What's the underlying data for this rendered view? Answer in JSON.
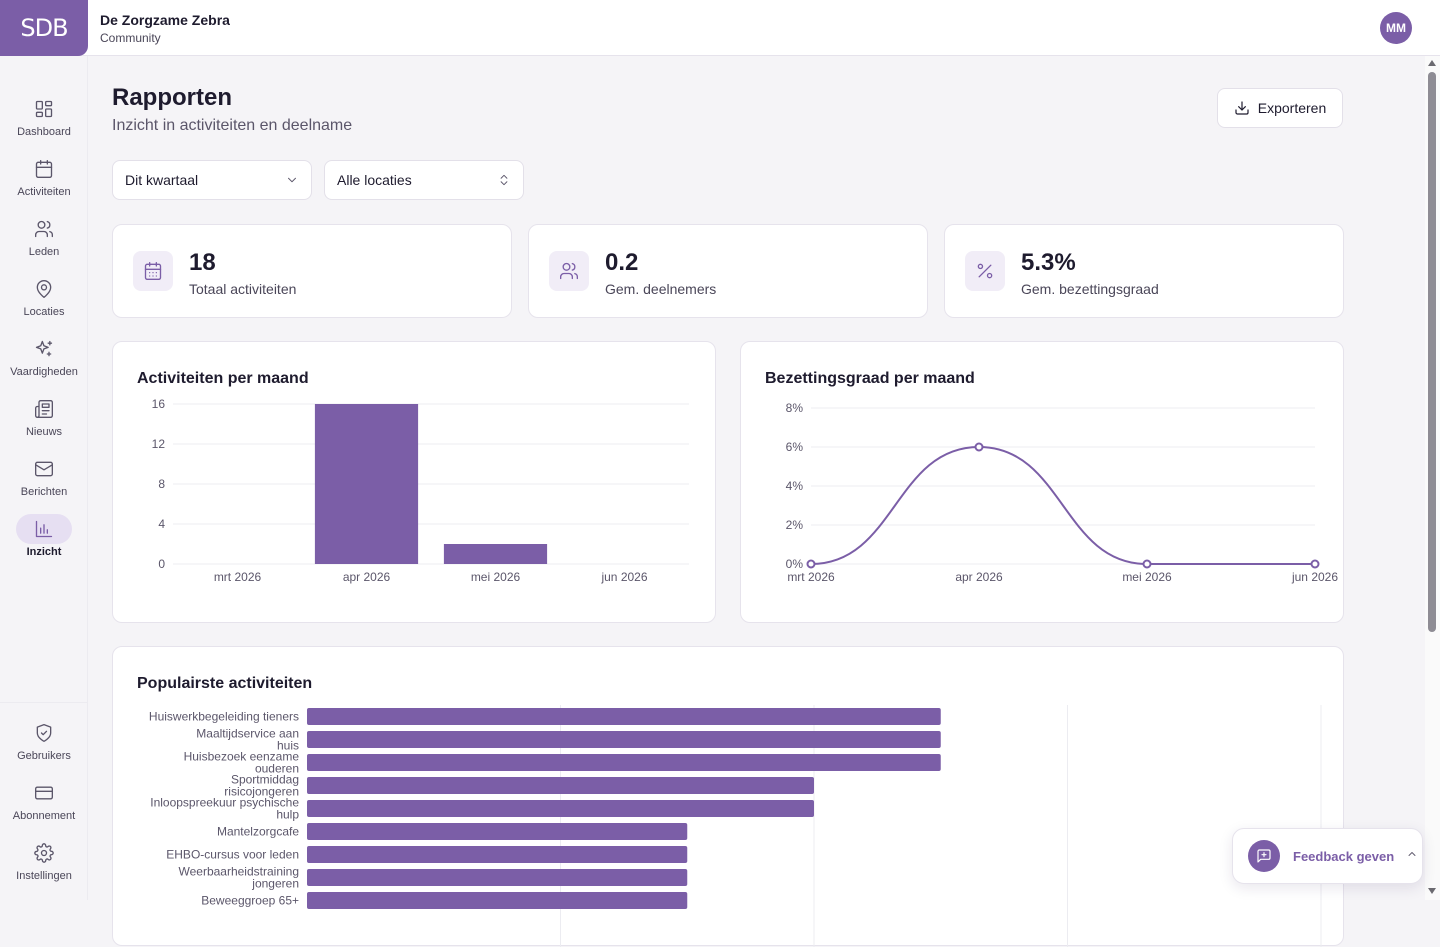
{
  "header": {
    "logo_text": "SDB",
    "org_name": "De Zorgzame Zebra",
    "org_sub": "Community",
    "avatar_initials": "MM"
  },
  "sidebar": {
    "items": [
      {
        "label": "Dashboard",
        "icon": "dashboard-icon"
      },
      {
        "label": "Activiteiten",
        "icon": "calendar-icon"
      },
      {
        "label": "Leden",
        "icon": "users-icon"
      },
      {
        "label": "Locaties",
        "icon": "map-pin-icon"
      },
      {
        "label": "Vaardigheden",
        "icon": "sparkles-icon"
      },
      {
        "label": "Nieuws",
        "icon": "newspaper-icon"
      },
      {
        "label": "Berichten",
        "icon": "mail-icon"
      },
      {
        "label": "Inzicht",
        "icon": "bar-chart-icon",
        "active": true
      }
    ],
    "bottom_items": [
      {
        "label": "Gebruikers",
        "icon": "shield-icon"
      },
      {
        "label": "Abonnement",
        "icon": "credit-card-icon"
      },
      {
        "label": "Instellingen",
        "icon": "gear-icon"
      }
    ]
  },
  "page": {
    "title": "Rapporten",
    "subtitle": "Inzicht in activiteiten en deelname",
    "export_label": "Exporteren"
  },
  "filters": {
    "period": "Dit kwartaal",
    "location": "Alle locaties"
  },
  "stats": [
    {
      "value": "18",
      "label": "Totaal activiteiten",
      "icon": "calendar-icon"
    },
    {
      "value": "0.2",
      "label": "Gem. deelnemers",
      "icon": "users-icon"
    },
    {
      "value": "5.3%",
      "label": "Gem. bezettingsgraad",
      "icon": "percent-icon"
    }
  ],
  "colors": {
    "accent": "#7b5ea7",
    "bar": "#7b5ea7"
  },
  "chart_data": [
    {
      "type": "bar",
      "title": "Activiteiten per maand",
      "categories": [
        "mrt 2026",
        "apr 2026",
        "mei 2026",
        "jun 2026"
      ],
      "values": [
        0,
        16,
        2,
        0
      ],
      "yticks": [
        "0",
        "4",
        "8",
        "12",
        "16"
      ],
      "ylim": [
        0,
        16
      ],
      "grid": true
    },
    {
      "type": "line",
      "title": "Bezettingsgraad per maand",
      "categories": [
        "mrt 2026",
        "apr 2026",
        "mei 2026",
        "jun 2026"
      ],
      "values": [
        0,
        6,
        0,
        0
      ],
      "yticks": [
        "0%",
        "2%",
        "4%",
        "6%",
        "8%"
      ],
      "ylim": [
        0,
        8
      ],
      "grid": true
    },
    {
      "type": "bar",
      "orientation": "horizontal",
      "title": "Populairste activiteiten",
      "categories": [
        [
          "Huiswerkbegeleiding tieners"
        ],
        [
          "Maaltijdservice aan",
          "huis"
        ],
        [
          "Huisbezoek eenzame",
          "ouderen"
        ],
        [
          "Sportmiddag",
          "risicojongeren"
        ],
        [
          "Inloopspreekuur psychische",
          "hulp"
        ],
        [
          "Mantelzorgcafe"
        ],
        [
          "EHBO-cursus voor leden"
        ],
        [
          "Weerbaarheidstraining",
          "jongeren"
        ],
        [
          "Beweeggroep 65+"
        ]
      ],
      "values": [
        5,
        5,
        5,
        4,
        4,
        3,
        3,
        3,
        3
      ],
      "xlim": [
        0,
        8
      ],
      "grid": true
    }
  ],
  "feedback": {
    "label": "Feedback geven"
  }
}
